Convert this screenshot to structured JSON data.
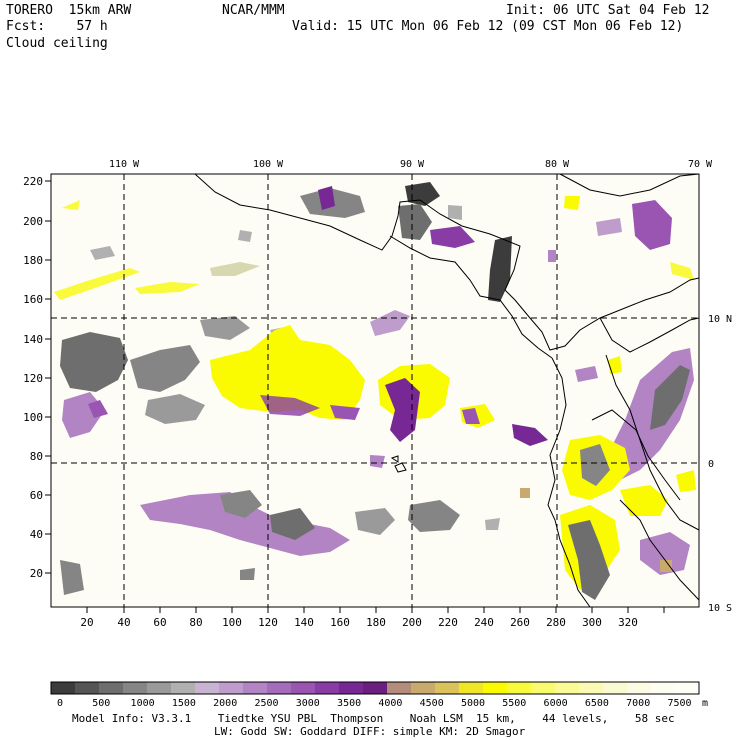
{
  "header": {
    "model": "TORERO  15km ARW",
    "center": "NCAR/MMM",
    "init": "Init: 06 UTC Sat 04 Feb 12",
    "forecast": "Fcst:    57 h",
    "valid": "Valid: 15 UTC Mon 06 Feb 12 (09 CST Mon 06 Feb 12)",
    "field": "Cloud ceiling"
  },
  "map": {
    "top_lon_labels": [
      "110 W",
      "100 W",
      "90 W",
      "80 W",
      "70 W"
    ],
    "right_lat_labels": [
      "10 N",
      "0",
      "10 S"
    ],
    "y_ticks": [
      "220",
      "200",
      "180",
      "160",
      "140",
      "120",
      "100",
      "80",
      "60",
      "40",
      "20"
    ],
    "x_ticks": [
      "20",
      "40",
      "60",
      "80",
      "100",
      "120",
      "140",
      "160",
      "180",
      "200",
      "220",
      "240",
      "260",
      "280",
      "300",
      "320"
    ],
    "colors": {
      "background": "#fdfdf6",
      "coast": "#000000",
      "grid": "#000000"
    }
  },
  "colorbar": {
    "labels": [
      "0",
      "500",
      "1000",
      "1500",
      "2000",
      "2500",
      "3000",
      "3500",
      "4000",
      "4500",
      "5000",
      "5500",
      "6000",
      "6500",
      "7000",
      "7500"
    ],
    "unit": "m",
    "colors": [
      "#3c3c3c",
      "#555555",
      "#6e6e6e",
      "#858585",
      "#9a9a9a",
      "#b0b0b0",
      "#c8b4d2",
      "#be9ccc",
      "#b284c4",
      "#a66cbc",
      "#9a54b2",
      "#8a3ca6",
      "#782894",
      "#6a1e7e",
      "#b48c7c",
      "#c8aa6e",
      "#dcc25a",
      "#f0e628",
      "#fafa00",
      "#fafa3c",
      "#fafa6e",
      "#fafa96",
      "#fafab4",
      "#fafad2",
      "#fcfce6",
      "#fdfdf0",
      "#fefef6"
    ]
  },
  "footer": {
    "line1": "Model Info: V3.3.1    Tiedtke YSU PBL  Thompson    Noah LSM  15 km,    44 levels,    58 sec",
    "line2": "LW: Godd SW: Goddard DIFF: simple KM: 2D Smagor"
  }
}
